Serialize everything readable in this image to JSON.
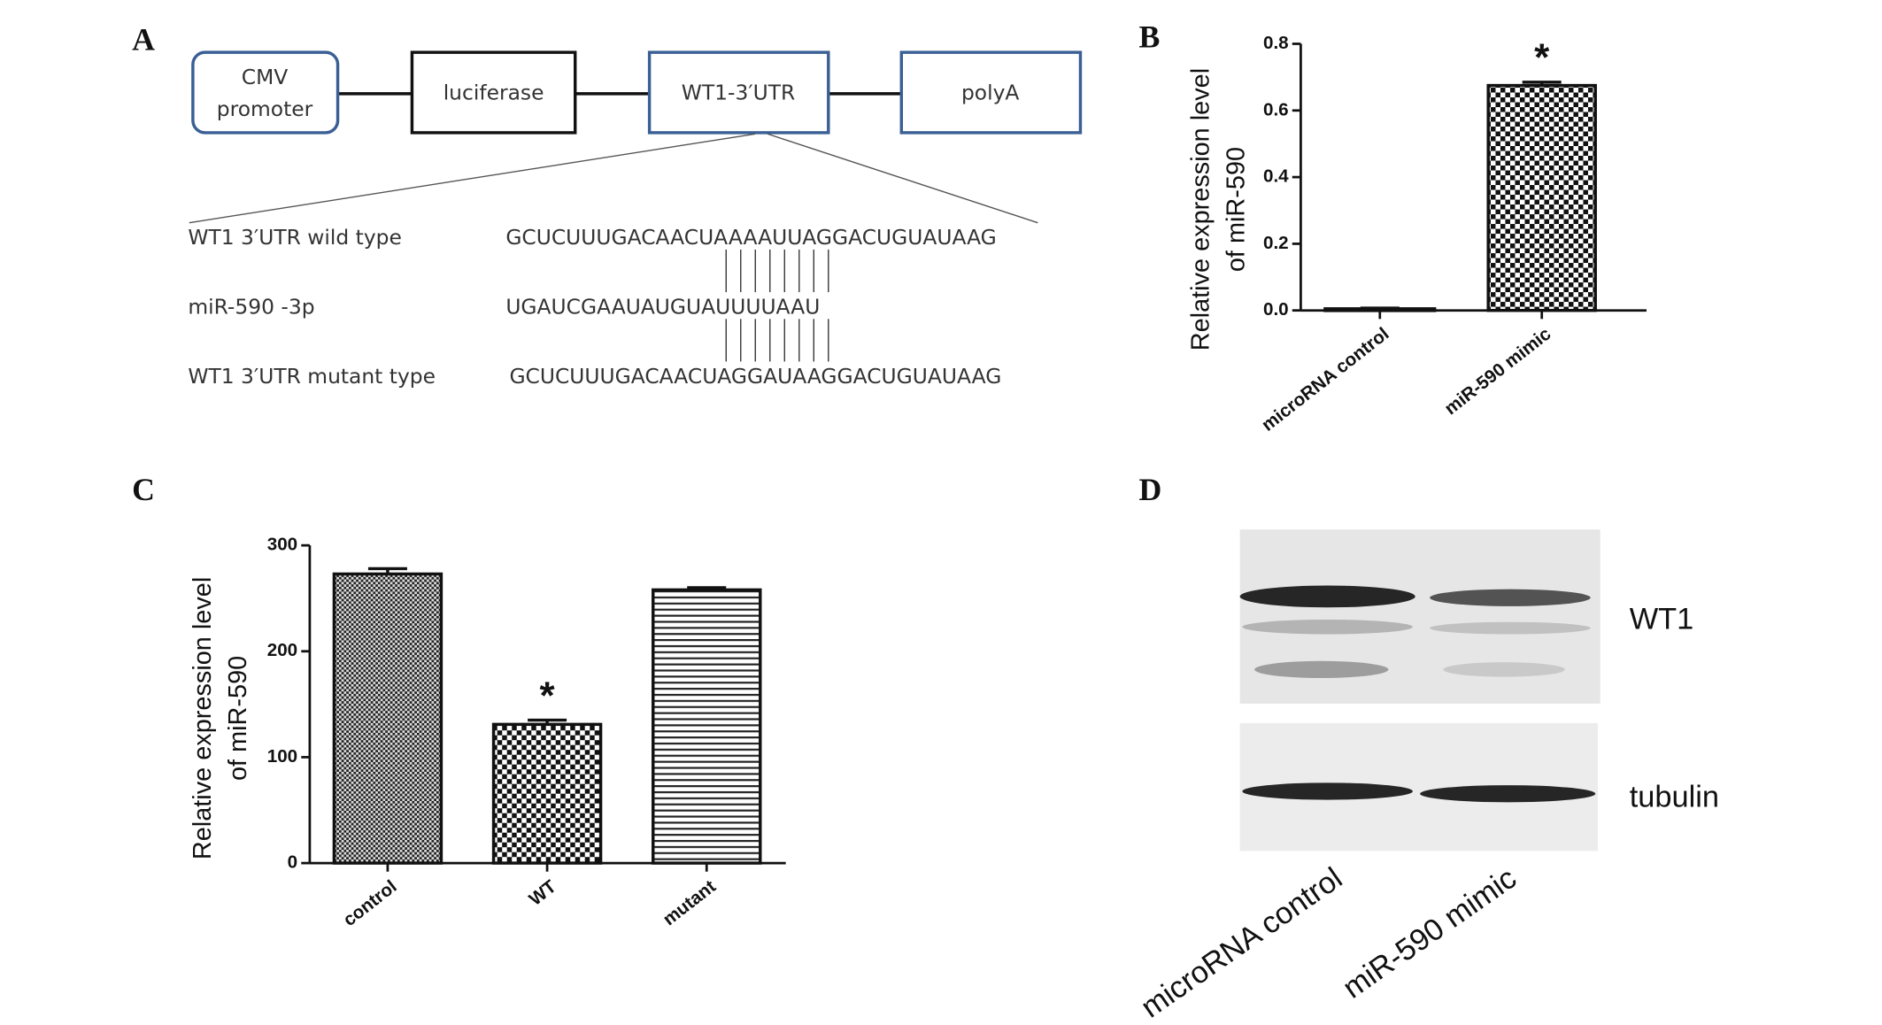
{
  "panel_labels": [
    "A",
    "B",
    "C",
    "D"
  ],
  "diagram": {
    "boxes": [
      "CMV\npromoter",
      "luciferase",
      "WT1-3′UTR",
      "polyA"
    ],
    "rows": [
      {
        "label": "WT1  3′UTR wild type",
        "sequence": "GCUCUUUGACAACUAAAAUUAGGACUGUAUAAG"
      },
      {
        "label": "miR-590 -3p",
        "sequence": "UGAUCGAAUAUGUAUUUUAAU"
      },
      {
        "label": "WT1  3′UTR mutant type",
        "sequence": "GCUCUUUGACAACUAGGAUAAGGACUGUAUAAG"
      }
    ]
  },
  "chart_data": [
    {
      "type": "bar",
      "y_label": [
        "Relative expression level",
        "of miR-590"
      ],
      "categories": [
        "microRNA control",
        "miR-590 mimic"
      ],
      "values": [
        0.005,
        0.675
      ],
      "errors": [
        0.002,
        0.01
      ],
      "significance": [
        null,
        "*"
      ],
      "patterns": [
        "checker",
        "checker"
      ],
      "ylim": [
        0,
        0.8
      ],
      "yticks": [
        {
          "value": 0,
          "label": "0.0"
        },
        0.2,
        0.4,
        0.6,
        0.8
      ]
    },
    {
      "type": "bar",
      "y_label": [
        "Relative expression level",
        "of miR-590"
      ],
      "categories": [
        "control",
        "WT",
        "mutant"
      ],
      "values": [
        273,
        131,
        258
      ],
      "errors": [
        5,
        4,
        2
      ],
      "significance": [
        null,
        "*",
        null
      ],
      "patterns": [
        "checker-fine",
        "checker",
        "hlines"
      ],
      "ylim": [
        0,
        300
      ],
      "yticks": [
        0,
        100,
        200,
        300
      ]
    }
  ],
  "blot": {
    "bands": [
      "WT1",
      "tubulin"
    ],
    "lanes": [
      "microRNA control",
      "miR-590 mimic"
    ]
  }
}
